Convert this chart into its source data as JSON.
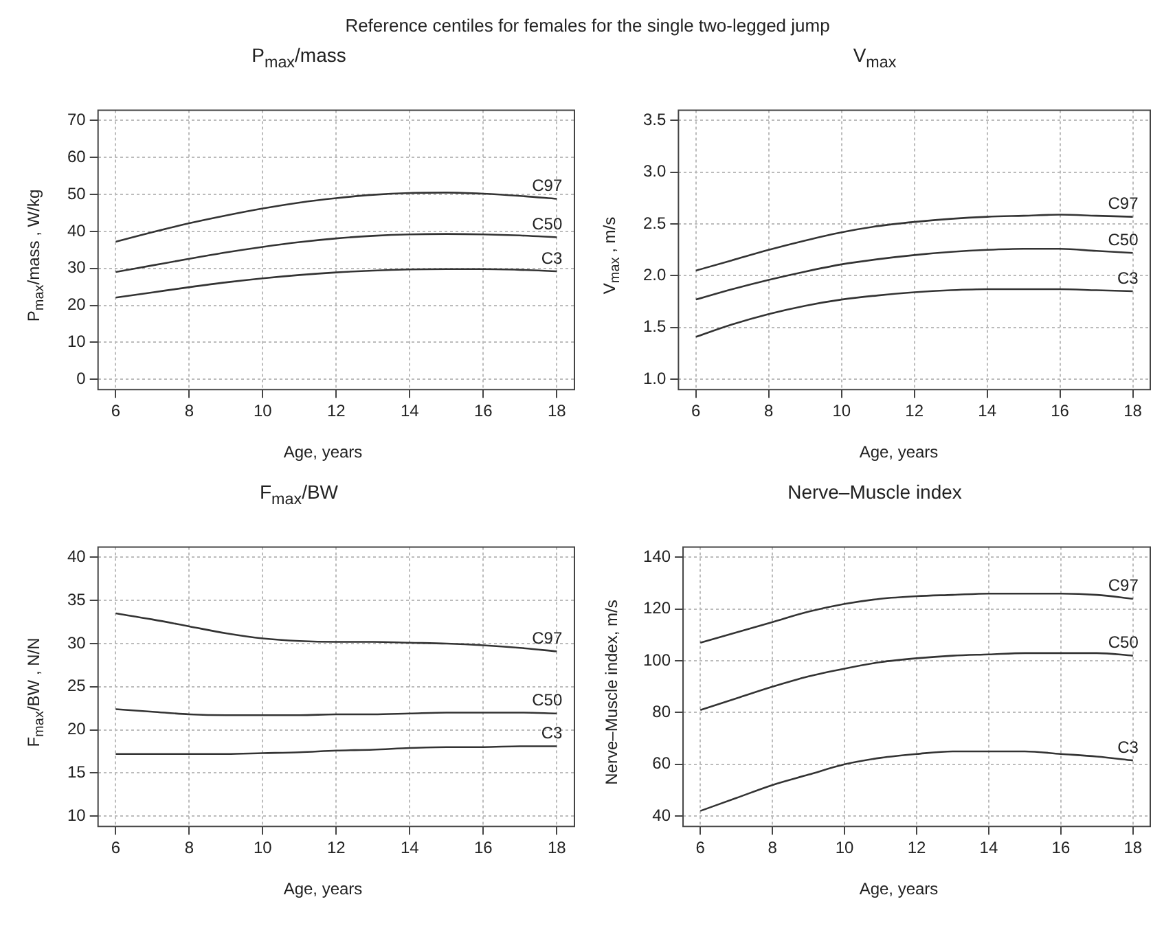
{
  "chart_data": [
    {
      "type": "line",
      "title": "P$_{max}$/mass",
      "xlabel": "Age, years",
      "ylabel": "P$_{max}$/mass , W/kg",
      "annotations": [
        "Reference centiles for females for the single two-legged jump"
      ],
      "grid": true,
      "x": [
        6,
        7,
        8,
        9,
        10,
        11,
        12,
        13,
        14,
        15,
        16,
        17,
        18
      ],
      "xlim": [
        5.52,
        18.48
      ],
      "xticks": [
        6,
        8,
        10,
        12,
        14,
        16,
        18
      ],
      "ylim": [
        -2.8,
        72.8
      ],
      "yticks": [
        0,
        10,
        20,
        30,
        40,
        50,
        60,
        70
      ],
      "series": [
        {
          "name": "C97",
          "color": "#333333",
          "values": [
            37.2,
            39.8,
            42.2,
            44.3,
            46.2,
            47.8,
            49.0,
            49.9,
            50.4,
            50.5,
            50.2,
            49.6,
            48.8
          ]
        },
        {
          "name": "C50",
          "color": "#333333",
          "values": [
            29.0,
            30.8,
            32.6,
            34.3,
            35.8,
            37.1,
            38.1,
            38.8,
            39.2,
            39.3,
            39.2,
            38.9,
            38.4
          ]
        },
        {
          "name": "C3",
          "color": "#333333",
          "values": [
            22.1,
            23.5,
            24.9,
            26.2,
            27.3,
            28.2,
            28.9,
            29.4,
            29.7,
            29.8,
            29.8,
            29.6,
            29.2
          ]
        }
      ]
    },
    {
      "type": "line",
      "title": "V$_{max}$",
      "xlabel": "Age, years",
      "ylabel": "V$_{max}$ , m/s",
      "grid": true,
      "x": [
        6,
        7,
        8,
        9,
        10,
        11,
        12,
        13,
        14,
        15,
        16,
        17,
        18
      ],
      "xlim": [
        5.52,
        18.48
      ],
      "xticks": [
        6,
        8,
        10,
        12,
        14,
        16,
        18
      ],
      "ylim": [
        0.9,
        3.6
      ],
      "yticks": [
        {
          "value": 1,
          "label": "1.0"
        },
        1.5,
        {
          "value": 2,
          "label": "2.0"
        },
        2.5,
        {
          "value": 3,
          "label": "3.0"
        },
        3.5
      ],
      "series": [
        {
          "name": "C97",
          "color": "#333333",
          "values": [
            2.05,
            2.15,
            2.25,
            2.34,
            2.42,
            2.48,
            2.52,
            2.55,
            2.57,
            2.58,
            2.59,
            2.58,
            2.57
          ]
        },
        {
          "name": "C50",
          "color": "#333333",
          "values": [
            1.77,
            1.87,
            1.96,
            2.04,
            2.11,
            2.16,
            2.2,
            2.23,
            2.25,
            2.26,
            2.26,
            2.24,
            2.22
          ]
        },
        {
          "name": "C3",
          "color": "#333333",
          "values": [
            1.41,
            1.53,
            1.63,
            1.71,
            1.77,
            1.81,
            1.84,
            1.86,
            1.87,
            1.87,
            1.87,
            1.86,
            1.85
          ]
        }
      ]
    },
    {
      "type": "line",
      "title": "F$_{max}$/BW",
      "xlabel": "Age, years",
      "ylabel": "F$_{max}$/BW , N/N",
      "grid": true,
      "x": [
        6,
        7,
        8,
        9,
        10,
        11,
        12,
        13,
        14,
        15,
        16,
        17,
        18
      ],
      "xlim": [
        5.52,
        18.48
      ],
      "xticks": [
        6,
        8,
        10,
        12,
        14,
        16,
        18
      ],
      "ylim": [
        8.8,
        41.2
      ],
      "yticks": [
        10,
        15,
        20,
        25,
        30,
        35,
        40
      ],
      "series": [
        {
          "name": "C97",
          "color": "#333333",
          "values": [
            33.5,
            32.8,
            32.0,
            31.2,
            30.6,
            30.3,
            30.2,
            30.2,
            30.1,
            30.0,
            29.8,
            29.5,
            29.1
          ]
        },
        {
          "name": "C50",
          "color": "#333333",
          "values": [
            22.4,
            22.1,
            21.8,
            21.7,
            21.7,
            21.7,
            21.8,
            21.8,
            21.9,
            22.0,
            22.0,
            22.0,
            21.9
          ]
        },
        {
          "name": "C3",
          "color": "#333333",
          "values": [
            17.2,
            17.2,
            17.2,
            17.2,
            17.3,
            17.4,
            17.6,
            17.7,
            17.9,
            18.0,
            18.0,
            18.1,
            18.1
          ]
        }
      ]
    },
    {
      "type": "line",
      "title": "Nerve–Muscle index",
      "xlabel": "Age, years",
      "ylabel": "Nerve–Muscle index, m/s",
      "grid": true,
      "x": [
        6,
        7,
        8,
        9,
        10,
        11,
        12,
        13,
        14,
        15,
        16,
        17,
        18
      ],
      "xlim": [
        5.52,
        18.48
      ],
      "xticks": [
        6,
        8,
        10,
        12,
        14,
        16,
        18
      ],
      "ylim": [
        36,
        144
      ],
      "yticks": [
        40,
        60,
        80,
        100,
        120,
        140
      ],
      "series": [
        {
          "name": "C97",
          "color": "#333333",
          "values": [
            107,
            111,
            115,
            119,
            122,
            124,
            125,
            125.5,
            126,
            126,
            126,
            125.5,
            124
          ]
        },
        {
          "name": "C50",
          "color": "#333333",
          "values": [
            81,
            85.5,
            90,
            94,
            97,
            99.5,
            101,
            102,
            102.5,
            103,
            103,
            103,
            102
          ]
        },
        {
          "name": "C3",
          "color": "#333333",
          "values": [
            42,
            47,
            52,
            56,
            60,
            62.5,
            64,
            65,
            65,
            65,
            64,
            63,
            61.5
          ]
        }
      ]
    }
  ]
}
